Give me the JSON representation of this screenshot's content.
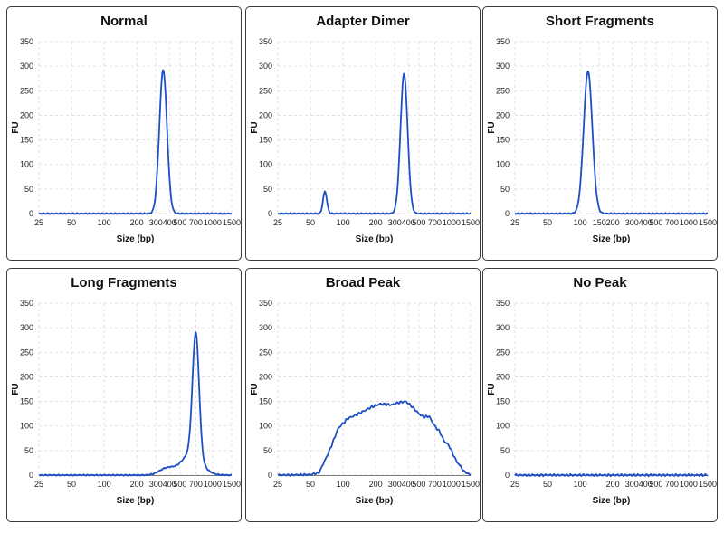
{
  "chart_data": [
    {
      "type": "line",
      "title": "Normal",
      "xlabel": "Size (bp)",
      "ylabel": "FU",
      "x_ticks": [
        "25",
        "50",
        "100",
        "200",
        "300",
        "400",
        "500",
        "700",
        "1000",
        "1500"
      ],
      "y_ticks": [
        "0",
        "50",
        "100",
        "150",
        "200",
        "250",
        "300",
        "350"
      ],
      "ylim": [
        0,
        350
      ],
      "peaks": [
        {
          "x": 350,
          "y": 293,
          "width": 0.035
        }
      ],
      "baseline_noise": 1.5
    },
    {
      "type": "line",
      "title": "Adapter Dimer",
      "xlabel": "Size (bp)",
      "ylabel": "FU",
      "x_ticks": [
        "25",
        "50",
        "100",
        "200",
        "300",
        "400",
        "500",
        "700",
        "1000",
        "1500"
      ],
      "y_ticks": [
        "0",
        "50",
        "100",
        "150",
        "200",
        "250",
        "300",
        "350"
      ],
      "ylim": [
        0,
        350
      ],
      "peaks": [
        {
          "x": 68,
          "y": 45,
          "width": 0.018
        },
        {
          "x": 365,
          "y": 285,
          "width": 0.033
        }
      ],
      "baseline_noise": 1.5
    },
    {
      "type": "line",
      "title": "Short Fragments",
      "xlabel": "Size (bp)",
      "ylabel": "FU",
      "x_ticks": [
        "25",
        "50",
        "100",
        "150",
        "200",
        "300",
        "400",
        "500",
        "700",
        "1000",
        "1500"
      ],
      "y_ticks": [
        "0",
        "50",
        "100",
        "150",
        "200",
        "250",
        "300",
        "350"
      ],
      "ylim": [
        0,
        350
      ],
      "peaks": [
        {
          "x": 118,
          "y": 290,
          "width": 0.04
        }
      ],
      "baseline_noise": 1.5
    },
    {
      "type": "line",
      "title": "Long Fragments",
      "xlabel": "Size (bp)",
      "ylabel": "FU",
      "x_ticks": [
        "25",
        "50",
        "100",
        "200",
        "300",
        "400",
        "500",
        "700",
        "1000",
        "1500"
      ],
      "y_ticks": [
        "0",
        "50",
        "100",
        "150",
        "200",
        "250",
        "300",
        "350"
      ],
      "ylim": [
        0,
        350
      ],
      "peaks": [
        {
          "x": 700,
          "y": 250,
          "width": 0.03
        },
        {
          "x": 640,
          "y": 45,
          "width": 0.09
        },
        {
          "x": 380,
          "y": 14,
          "width": 0.07
        }
      ],
      "baseline_noise": 1.5
    },
    {
      "type": "line",
      "title": "Broad Peak",
      "xlabel": "Size (bp)",
      "ylabel": "FU",
      "x_ticks": [
        "25",
        "50",
        "100",
        "200",
        "300",
        "400",
        "500",
        "700",
        "1000",
        "1500"
      ],
      "y_ticks": [
        "0",
        "50",
        "100",
        "150",
        "200",
        "250",
        "300",
        "350"
      ],
      "ylim": [
        0,
        350
      ],
      "broad_points": [
        [
          25,
          0
        ],
        [
          50,
          1
        ],
        [
          60,
          5
        ],
        [
          75,
          50
        ],
        [
          90,
          95
        ],
        [
          110,
          115
        ],
        [
          140,
          125
        ],
        [
          180,
          138
        ],
        [
          220,
          145
        ],
        [
          280,
          143
        ],
        [
          330,
          148
        ],
        [
          380,
          150
        ],
        [
          430,
          140
        ],
        [
          500,
          125
        ],
        [
          550,
          118
        ],
        [
          620,
          120
        ],
        [
          700,
          100
        ],
        [
          780,
          88
        ],
        [
          850,
          70
        ],
        [
          950,
          60
        ],
        [
          1100,
          30
        ],
        [
          1300,
          8
        ],
        [
          1500,
          0
        ]
      ],
      "baseline_noise": 2.5
    },
    {
      "type": "line",
      "title": "No Peak",
      "xlabel": "Size (bp)",
      "ylabel": "FU",
      "x_ticks": [
        "25",
        "50",
        "100",
        "200",
        "300",
        "400",
        "500",
        "700",
        "1000",
        "1500"
      ],
      "y_ticks": [
        "0",
        "50",
        "100",
        "150",
        "200",
        "250",
        "300",
        "350"
      ],
      "ylim": [
        0,
        350
      ],
      "peaks": [],
      "baseline_noise": 2.5
    }
  ],
  "colors": {
    "trace": "#1f4fc4"
  }
}
